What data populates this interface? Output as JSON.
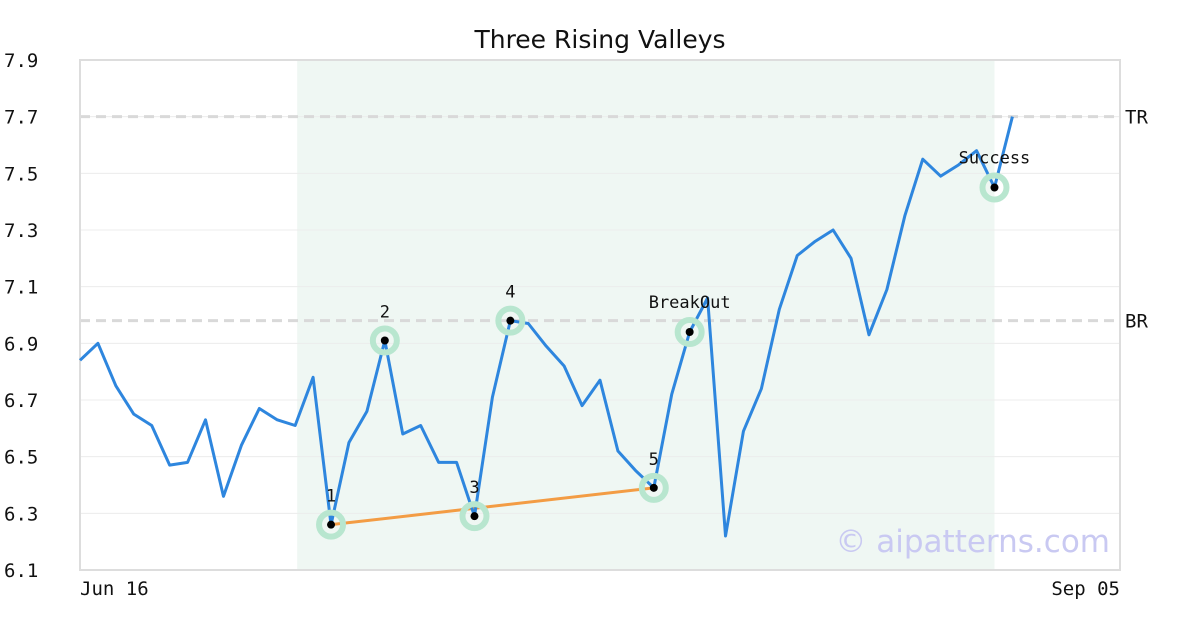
{
  "chart_data": {
    "type": "line",
    "title": "Three Rising Valleys",
    "xlabel": "",
    "ylabel": "",
    "x_tick_labels": [
      {
        "x": 0,
        "label": "Jun 16"
      },
      {
        "x": 58,
        "label": "Sep 05"
      }
    ],
    "xlim": [
      0,
      58
    ],
    "ylim": [
      6.1,
      7.9
    ],
    "y_ticks": [
      "6.1",
      "6.3",
      "6.5",
      "6.7",
      "6.9",
      "7.1",
      "7.3",
      "7.5",
      "7.7",
      "7.9"
    ],
    "grid": "horizontal",
    "pattern_range": [
      12,
      51
    ],
    "series": [
      {
        "name": "",
        "color": "#2e86de",
        "x": [
          0,
          1,
          2,
          3,
          4,
          5,
          6,
          7,
          8,
          9,
          10,
          11,
          12,
          13,
          14,
          15,
          16,
          17,
          18,
          19,
          20,
          21,
          22,
          23,
          24,
          25,
          26,
          27,
          28,
          29,
          30,
          31,
          32,
          33,
          34,
          35,
          36,
          37,
          38,
          39,
          40,
          41,
          42,
          43,
          44,
          45,
          46,
          47,
          48,
          49,
          50,
          51,
          52
        ],
        "values": [
          6.84,
          6.9,
          6.75,
          6.65,
          6.61,
          6.47,
          6.48,
          6.63,
          6.36,
          6.54,
          6.67,
          6.63,
          6.61,
          6.78,
          6.26,
          6.55,
          6.66,
          6.91,
          6.58,
          6.61,
          6.48,
          6.48,
          6.29,
          6.71,
          6.98,
          6.97,
          6.89,
          6.82,
          6.68,
          6.77,
          6.52,
          6.45,
          6.39,
          6.72,
          6.94,
          7.06,
          6.22,
          6.59,
          6.74,
          7.02,
          7.21,
          7.26,
          7.3,
          7.2,
          6.93,
          7.09,
          7.35,
          7.55,
          7.49,
          7.53,
          7.58,
          7.45,
          7.7
        ]
      }
    ],
    "levels": [
      {
        "label": "TR",
        "value": 7.7,
        "color": "#d9d9d9"
      },
      {
        "label": "BR",
        "value": 6.98,
        "color": "#d9d9d9"
      }
    ],
    "valley_line": {
      "color": "#f39c44",
      "points": [
        {
          "x": 14,
          "y": 6.26
        },
        {
          "x": 32,
          "y": 6.39
        }
      ]
    },
    "markers": [
      {
        "label": "1",
        "x": 14,
        "y": 6.26
      },
      {
        "label": "2",
        "x": 17,
        "y": 6.91
      },
      {
        "label": "3",
        "x": 22,
        "y": 6.29
      },
      {
        "label": "4",
        "x": 24,
        "y": 6.98
      },
      {
        "label": "5",
        "x": 32,
        "y": 6.39
      },
      {
        "label": "BreakOut",
        "x": 34,
        "y": 6.94
      },
      {
        "label": "Success",
        "x": 51,
        "y": 7.45
      }
    ],
    "watermark": "© aipatterns.com"
  }
}
